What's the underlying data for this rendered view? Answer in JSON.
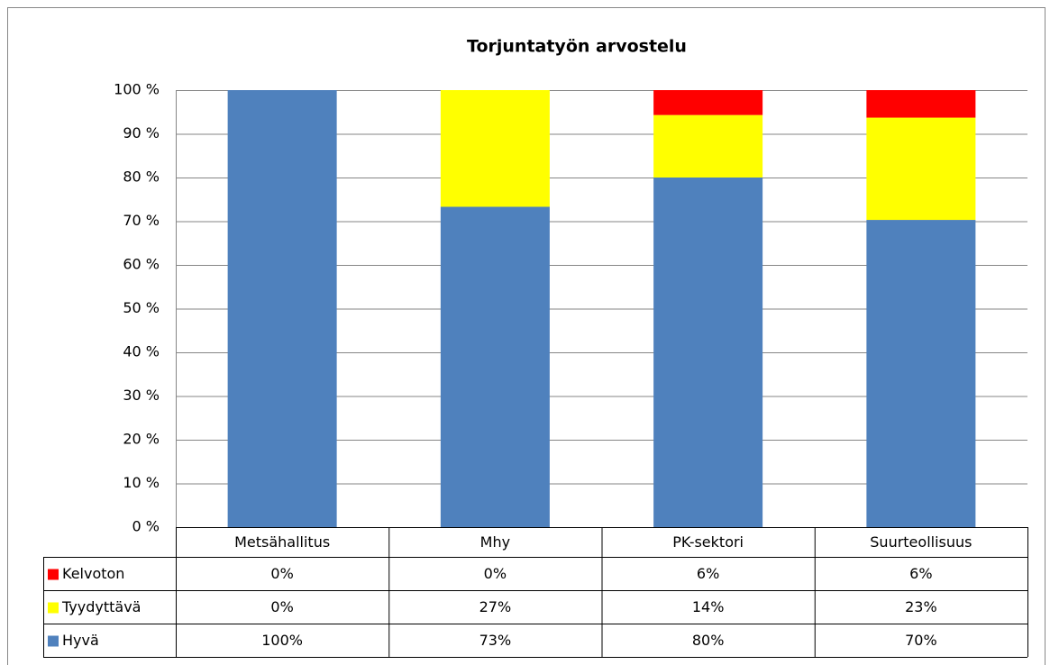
{
  "chart_data": {
    "type": "stacked_bar_100",
    "title": "Torjuntatyön arvostelu",
    "categories": [
      "Metsähallitus",
      "Mhy",
      "PK-sektori",
      "Suurteollisuus"
    ],
    "series": [
      {
        "name": "Hyvä",
        "color": "#4f81bd",
        "values": [
          100,
          73.3,
          80,
          70.3
        ],
        "value_labels": [
          "100%",
          "73%",
          "80%",
          "70%"
        ]
      },
      {
        "name": "Tyydyttävä",
        "color": "#ffff00",
        "values": [
          0,
          26.7,
          14.3,
          23.4
        ],
        "value_labels": [
          "0%",
          "27%",
          "14%",
          "23%"
        ]
      },
      {
        "name": "Kelvoton",
        "color": "#ff0000",
        "values": [
          0,
          0,
          5.7,
          6.3
        ],
        "value_labels": [
          "0%",
          "0%",
          "6%",
          "6%"
        ]
      }
    ],
    "ylim": [
      0,
      100
    ],
    "yticks": [
      {
        "value": 0,
        "label": "0 %"
      },
      {
        "value": 10,
        "label": "10 %"
      },
      {
        "value": 20,
        "label": "20 %"
      },
      {
        "value": 30,
        "label": "30 %"
      },
      {
        "value": 40,
        "label": "40 %"
      },
      {
        "value": 50,
        "label": "50 %"
      },
      {
        "value": 60,
        "label": "60 %"
      },
      {
        "value": 70,
        "label": "70 %"
      },
      {
        "value": 80,
        "label": "80 %"
      },
      {
        "value": 90,
        "label": "90 %"
      },
      {
        "value": 100,
        "label": "100 %"
      }
    ],
    "grid": true,
    "data_table": true
  }
}
